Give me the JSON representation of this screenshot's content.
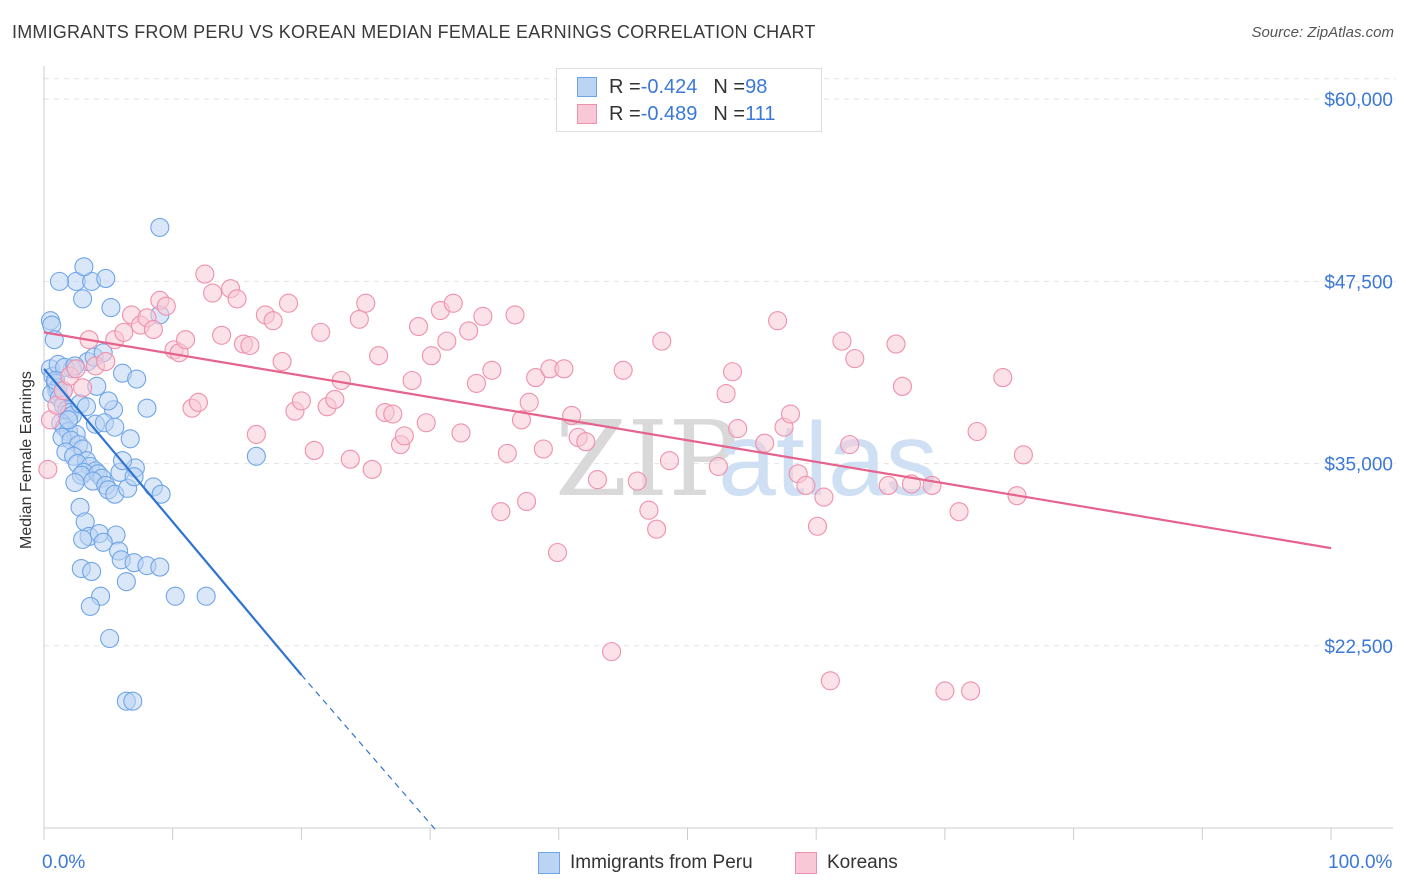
{
  "title": "IMMIGRANTS FROM PERU VS KOREAN MEDIAN FEMALE EARNINGS CORRELATION CHART",
  "source": "Source: ZipAtlas.com",
  "watermark": {
    "zip": "ZIP",
    "atlas": "atlas"
  },
  "legend_top": [
    {
      "r_label": "R = ",
      "r_value": "-0.424",
      "n_label": "N = ",
      "n_value": "98",
      "color": "#6fa5e8",
      "fill": "#bcd4f3"
    },
    {
      "r_label": "R = ",
      "r_value": "-0.489",
      "n_label": "N = ",
      "n_value": "111",
      "color": "#ef90ad",
      "fill": "#f8c8d6"
    }
  ],
  "legend_bottom": [
    {
      "label": "Immigrants from Peru",
      "color": "#6fa5e8",
      "fill": "#bcd4f3"
    },
    {
      "label": "Koreans",
      "color": "#ef90ad",
      "fill": "#f8c8d6"
    }
  ],
  "chart_data": {
    "type": "scatter",
    "title": "IMMIGRANTS FROM PERU VS KOREAN MEDIAN FEMALE EARNINGS CORRELATION CHART",
    "xlabel": "",
    "ylabel": "Median Female Earnings",
    "xlim": [
      0,
      100
    ],
    "ylim": [
      10000,
      62000
    ],
    "x_tick_labels": [
      {
        "value": 0,
        "label": "0.0%"
      },
      {
        "value": 100,
        "label": "100.0%"
      }
    ],
    "y_ticks": [
      {
        "value": 60000,
        "label": "$60,000"
      },
      {
        "value": 47500,
        "label": "$47,500"
      },
      {
        "value": 35000,
        "label": "$35,000"
      },
      {
        "value": 22500,
        "label": "$22,500"
      }
    ],
    "series": [
      {
        "name": "Immigrants from Peru",
        "stroke": "#6fa5e8",
        "fill": "#bcd4f3",
        "line_color": "#2f74d0",
        "trend": {
          "x0": 0,
          "y0": 41500,
          "x1": 20,
          "y1": 20500,
          "dash_to_x": 30.5,
          "dash_to_y": 9800
        },
        "points": [
          [
            0.5,
            44800
          ],
          [
            0.6,
            44500
          ],
          [
            0.8,
            43500
          ],
          [
            0.5,
            41500
          ],
          [
            0.7,
            41000
          ],
          [
            0.9,
            40500
          ],
          [
            1.0,
            40000
          ],
          [
            1.1,
            40200
          ],
          [
            0.6,
            39800
          ],
          [
            1.2,
            39500
          ],
          [
            1.5,
            39000
          ],
          [
            1.8,
            38700
          ],
          [
            2.0,
            38500
          ],
          [
            2.2,
            38300
          ],
          [
            1.3,
            37800
          ],
          [
            1.6,
            37500
          ],
          [
            1.9,
            37200
          ],
          [
            2.5,
            37000
          ],
          [
            1.4,
            36800
          ],
          [
            2.1,
            36600
          ],
          [
            2.7,
            36300
          ],
          [
            3.0,
            36000
          ],
          [
            1.7,
            35800
          ],
          [
            2.3,
            35500
          ],
          [
            3.3,
            35200
          ],
          [
            2.6,
            35000
          ],
          [
            3.6,
            34800
          ],
          [
            4.0,
            34500
          ],
          [
            3.1,
            34400
          ],
          [
            2.9,
            34200
          ],
          [
            4.2,
            34300
          ],
          [
            4.5,
            34000
          ],
          [
            3.8,
            33800
          ],
          [
            4.8,
            33500
          ],
          [
            2.4,
            33700
          ],
          [
            5.0,
            33200
          ],
          [
            5.5,
            32900
          ],
          [
            2.8,
            32000
          ],
          [
            3.2,
            31000
          ],
          [
            3.5,
            30000
          ],
          [
            3.0,
            29800
          ],
          [
            4.3,
            30200
          ],
          [
            5.6,
            30100
          ],
          [
            4.6,
            29600
          ],
          [
            5.8,
            29000
          ],
          [
            6.0,
            28400
          ],
          [
            7.0,
            28200
          ],
          [
            8.0,
            28000
          ],
          [
            9.0,
            27900
          ],
          [
            2.9,
            27800
          ],
          [
            3.7,
            27600
          ],
          [
            4.4,
            25900
          ],
          [
            6.4,
            26900
          ],
          [
            10.2,
            25900
          ],
          [
            12.6,
            25900
          ],
          [
            3.6,
            25200
          ],
          [
            5.1,
            23000
          ],
          [
            6.4,
            18700
          ],
          [
            6.9,
            18700
          ],
          [
            6.1,
            41200
          ],
          [
            7.2,
            40800
          ],
          [
            8.0,
            38800
          ],
          [
            5.4,
            38700
          ],
          [
            5.0,
            39300
          ],
          [
            4.1,
            40300
          ],
          [
            3.4,
            42000
          ],
          [
            3.9,
            42300
          ],
          [
            4.6,
            42600
          ],
          [
            5.2,
            45700
          ],
          [
            3.0,
            46300
          ],
          [
            2.5,
            47500
          ],
          [
            3.7,
            47500
          ],
          [
            4.8,
            47700
          ],
          [
            3.1,
            48500
          ],
          [
            1.2,
            47500
          ],
          [
            9.0,
            51200
          ],
          [
            9.0,
            45200
          ],
          [
            16.5,
            35500
          ],
          [
            6.7,
            36700
          ],
          [
            6.5,
            33300
          ],
          [
            7.1,
            34700
          ],
          [
            5.9,
            34400
          ],
          [
            8.5,
            33400
          ],
          [
            9.1,
            32900
          ],
          [
            1.9,
            38000
          ],
          [
            2.2,
            41500
          ],
          [
            1.1,
            41800
          ],
          [
            1.6,
            41600
          ],
          [
            2.4,
            41700
          ],
          [
            0.9,
            40700
          ],
          [
            1.5,
            40000
          ],
          [
            2.8,
            39100
          ],
          [
            3.3,
            38900
          ],
          [
            4.0,
            37700
          ],
          [
            4.7,
            37800
          ],
          [
            5.5,
            37500
          ],
          [
            6.1,
            35200
          ],
          [
            7.0,
            34100
          ]
        ]
      },
      {
        "name": "Koreans",
        "stroke": "#ef90ad",
        "fill": "#f8c8d6",
        "line_color": "#e5638c",
        "trend": {
          "x0": 0,
          "y0": 44000,
          "x1": 100,
          "y1": 29200
        },
        "points": [
          [
            0.3,
            34600
          ],
          [
            0.5,
            38000
          ],
          [
            1.0,
            39000
          ],
          [
            1.5,
            40000
          ],
          [
            2.0,
            41000
          ],
          [
            2.5,
            41500
          ],
          [
            3.0,
            40200
          ],
          [
            3.5,
            43500
          ],
          [
            4.0,
            41700
          ],
          [
            4.8,
            42000
          ],
          [
            5.5,
            43500
          ],
          [
            6.2,
            44000
          ],
          [
            6.8,
            45200
          ],
          [
            7.5,
            44500
          ],
          [
            8.0,
            45000
          ],
          [
            8.5,
            44200
          ],
          [
            9.0,
            46200
          ],
          [
            9.5,
            45800
          ],
          [
            10.1,
            42800
          ],
          [
            10.5,
            42600
          ],
          [
            11.0,
            43500
          ],
          [
            11.5,
            38800
          ],
          [
            12.0,
            39200
          ],
          [
            12.5,
            48000
          ],
          [
            13.1,
            46700
          ],
          [
            13.8,
            43800
          ],
          [
            14.5,
            47000
          ],
          [
            15.0,
            46300
          ],
          [
            15.5,
            43200
          ],
          [
            16.0,
            43100
          ],
          [
            16.5,
            37000
          ],
          [
            17.2,
            45200
          ],
          [
            17.8,
            44800
          ],
          [
            18.5,
            42000
          ],
          [
            19.0,
            46000
          ],
          [
            19.5,
            38600
          ],
          [
            20.0,
            39300
          ],
          [
            21.0,
            35900
          ],
          [
            21.5,
            44000
          ],
          [
            22.0,
            38900
          ],
          [
            22.6,
            39400
          ],
          [
            23.1,
            40700
          ],
          [
            23.8,
            35300
          ],
          [
            24.5,
            44900
          ],
          [
            25.0,
            46000
          ],
          [
            25.5,
            34600
          ],
          [
            26.0,
            42400
          ],
          [
            26.5,
            38500
          ],
          [
            27.1,
            38400
          ],
          [
            27.7,
            36300
          ],
          [
            28.0,
            36900
          ],
          [
            28.6,
            40700
          ],
          [
            29.1,
            44400
          ],
          [
            29.7,
            37800
          ],
          [
            30.1,
            42400
          ],
          [
            30.8,
            45500
          ],
          [
            31.3,
            43400
          ],
          [
            31.8,
            46000
          ],
          [
            32.4,
            37100
          ],
          [
            33.0,
            44100
          ],
          [
            33.6,
            40500
          ],
          [
            34.1,
            45100
          ],
          [
            34.8,
            41400
          ],
          [
            35.5,
            31700
          ],
          [
            36.0,
            35700
          ],
          [
            36.6,
            45200
          ],
          [
            37.1,
            38000
          ],
          [
            37.7,
            39200
          ],
          [
            38.2,
            40900
          ],
          [
            38.8,
            36000
          ],
          [
            39.3,
            41500
          ],
          [
            39.9,
            28900
          ],
          [
            40.4,
            41500
          ],
          [
            41.0,
            38300
          ],
          [
            41.5,
            36800
          ],
          [
            42.1,
            36500
          ],
          [
            43.0,
            33900
          ],
          [
            44.1,
            22100
          ],
          [
            45.0,
            41400
          ],
          [
            46.1,
            33800
          ],
          [
            47.0,
            31800
          ],
          [
            47.6,
            30500
          ],
          [
            48.0,
            43400
          ],
          [
            48.6,
            35200
          ],
          [
            52.4,
            34800
          ],
          [
            53.0,
            39800
          ],
          [
            53.5,
            41300
          ],
          [
            53.9,
            37400
          ],
          [
            56.0,
            36400
          ],
          [
            57.0,
            44800
          ],
          [
            57.5,
            37500
          ],
          [
            58.0,
            38400
          ],
          [
            58.6,
            34300
          ],
          [
            59.2,
            33500
          ],
          [
            60.1,
            30700
          ],
          [
            60.6,
            32700
          ],
          [
            61.1,
            20100
          ],
          [
            62.0,
            43400
          ],
          [
            62.6,
            36300
          ],
          [
            63.0,
            42200
          ],
          [
            65.6,
            33500
          ],
          [
            66.2,
            43200
          ],
          [
            66.7,
            40300
          ],
          [
            67.4,
            33600
          ],
          [
            69.0,
            33500
          ],
          [
            70.0,
            19400
          ],
          [
            72.0,
            19400
          ],
          [
            71.1,
            31700
          ],
          [
            72.5,
            37200
          ],
          [
            74.5,
            40900
          ],
          [
            75.6,
            32800
          ],
          [
            76.1,
            35600
          ],
          [
            37.5,
            32400
          ]
        ]
      }
    ]
  }
}
